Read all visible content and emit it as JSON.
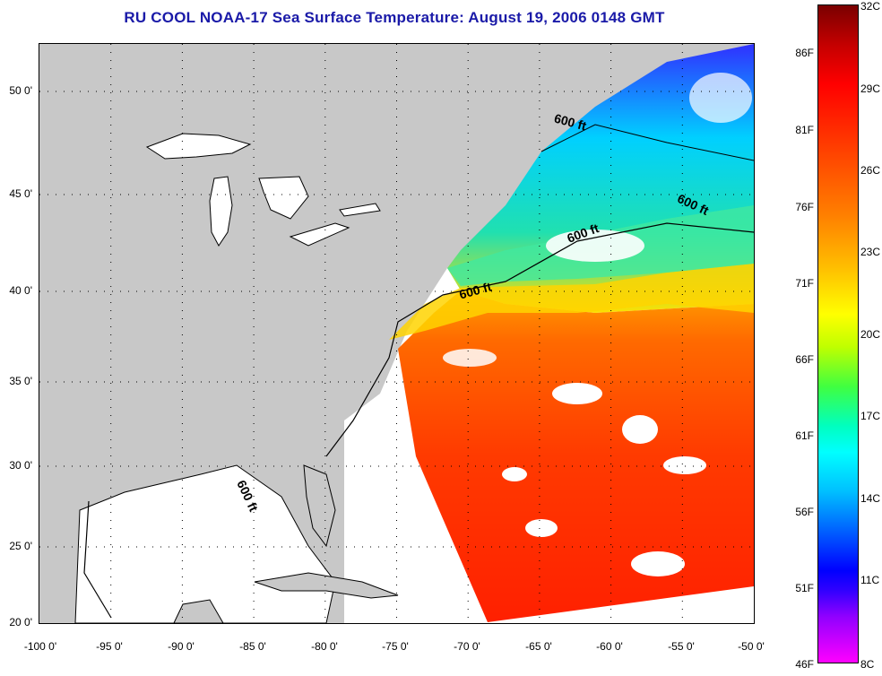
{
  "title": "RU COOL  NOAA-17  Sea Surface Temperature:  August 19, 2006 0148 GMT",
  "latitude_labels": [
    "50 0'",
    "45 0'",
    "40 0'",
    "35 0'",
    "30 0'",
    "25 0'",
    "20 0'"
  ],
  "longitude_labels": [
    "-100 0'",
    "-95 0'",
    "-90 0'",
    "-85 0'",
    "-80 0'",
    "-75 0'",
    "-70 0'",
    "-65 0'",
    "-60 0'",
    "-55 0'",
    "-50 0'"
  ],
  "contour_labels": [
    "600 ft",
    "600 ft",
    "600 ft",
    "600 ft",
    "600 ft"
  ],
  "colorbar": {
    "fahrenheit_labels": [
      "86F",
      "81F",
      "76F",
      "71F",
      "66F",
      "61F",
      "56F",
      "51F",
      "46F"
    ],
    "celsius_labels": [
      "32C",
      "29C",
      "26C",
      "23C",
      "20C",
      "17C",
      "14C",
      "11C",
      "8C"
    ]
  },
  "colors": {
    "title": "#1a1aa8",
    "land": "#c8c8c8",
    "warm": "#ff3a00",
    "cool": "#1fe0e0",
    "cold": "#0000ff"
  }
}
